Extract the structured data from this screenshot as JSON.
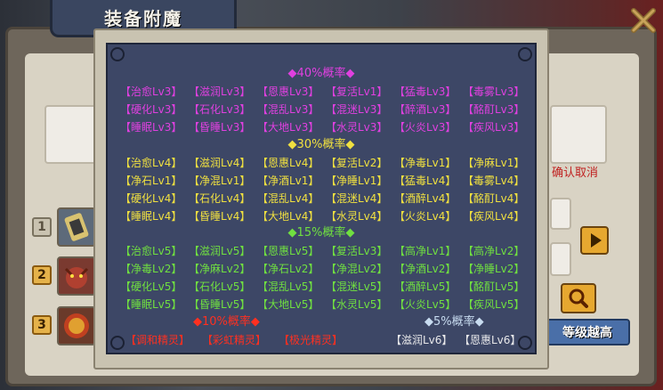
{
  "window": {
    "title": "装备附魔"
  },
  "background": {
    "confirm_cancel": "确认取消",
    "level_button": "等级越高",
    "slots": [
      "1",
      "2",
      "3"
    ]
  },
  "popup": {
    "tier40": {
      "header": "◆40%概率◆",
      "rows": [
        [
          "【治愈Lv3】",
          "【滋润Lv3】",
          "【恩惠Lv3】",
          "【复活Lv1】",
          "【猛毒Lv3】",
          "【毒雾Lv3】"
        ],
        [
          "【硬化Lv3】",
          "【石化Lv3】",
          "【混乱Lv3】",
          "【混迷Lv3】",
          "【醉酒Lv3】",
          "【酩酊Lv3】"
        ],
        [
          "【睡眠Lv3】",
          "【昏睡Lv3】",
          "【大地Lv3】",
          "【水灵Lv3】",
          "【火炎Lv3】",
          "【疾风Lv3】"
        ]
      ]
    },
    "tier30": {
      "header": "◆30%概率◆",
      "rows": [
        [
          "【治愈Lv4】",
          "【滋润Lv4】",
          "【恩惠Lv4】",
          "【复活Lv2】",
          "【净毒Lv1】",
          "【净麻Lv1】"
        ],
        [
          "【净石Lv1】",
          "【净混Lv1】",
          "【净酒Lv1】",
          "【净睡Lv1】",
          "【猛毒Lv4】",
          "【毒雾Lv4】"
        ],
        [
          "【硬化Lv4】",
          "【石化Lv4】",
          "【混乱Lv4】",
          "【混迷Lv4】",
          "【酒醉Lv4】",
          "【酩酊Lv4】"
        ],
        [
          "【睡眠Lv4】",
          "【昏睡Lv4】",
          "【大地Lv4】",
          "【水灵Lv4】",
          "【火炎Lv4】",
          "【疾风Lv4】"
        ]
      ]
    },
    "tier15": {
      "header": "◆15%概率◆",
      "rows": [
        [
          "【治愈Lv5】",
          "【滋润Lv5】",
          "【恩惠Lv5】",
          "【复活Lv3】",
          "【高净Lv1】",
          "【高净Lv2】"
        ],
        [
          "【净毒Lv2】",
          "【净麻Lv2】",
          "【净石Lv2】",
          "【净混Lv2】",
          "【净酒Lv2】",
          "【净睡Lv2】"
        ],
        [
          "【硬化Lv5】",
          "【石化Lv5】",
          "【混乱Lv5】",
          "【混迷Lv5】",
          "【酒醉Lv5】",
          "【酩酊Lv5】"
        ],
        [
          "【睡眠Lv5】",
          "【昏睡Lv5】",
          "【大地Lv5】",
          "【水灵Lv5】",
          "【火炎Lv5】",
          "【疾风Lv5】"
        ]
      ]
    },
    "tier10": {
      "header": "◆10%概率◆",
      "items": [
        "【调和精灵】",
        "【彩虹精灵】",
        "【极光精灵】"
      ]
    },
    "tier5": {
      "header": "◆5%概率◆",
      "items": [
        "【滋润Lv6】",
        "【恩惠Lv6】"
      ]
    }
  },
  "colors": {
    "tier40": "#e040e0",
    "tier30": "#f0e040",
    "tier15": "#70e040",
    "tier10": "#ff3020",
    "tier5_header": "#c8dcf0",
    "tier5_items": "#e8e8ea"
  }
}
